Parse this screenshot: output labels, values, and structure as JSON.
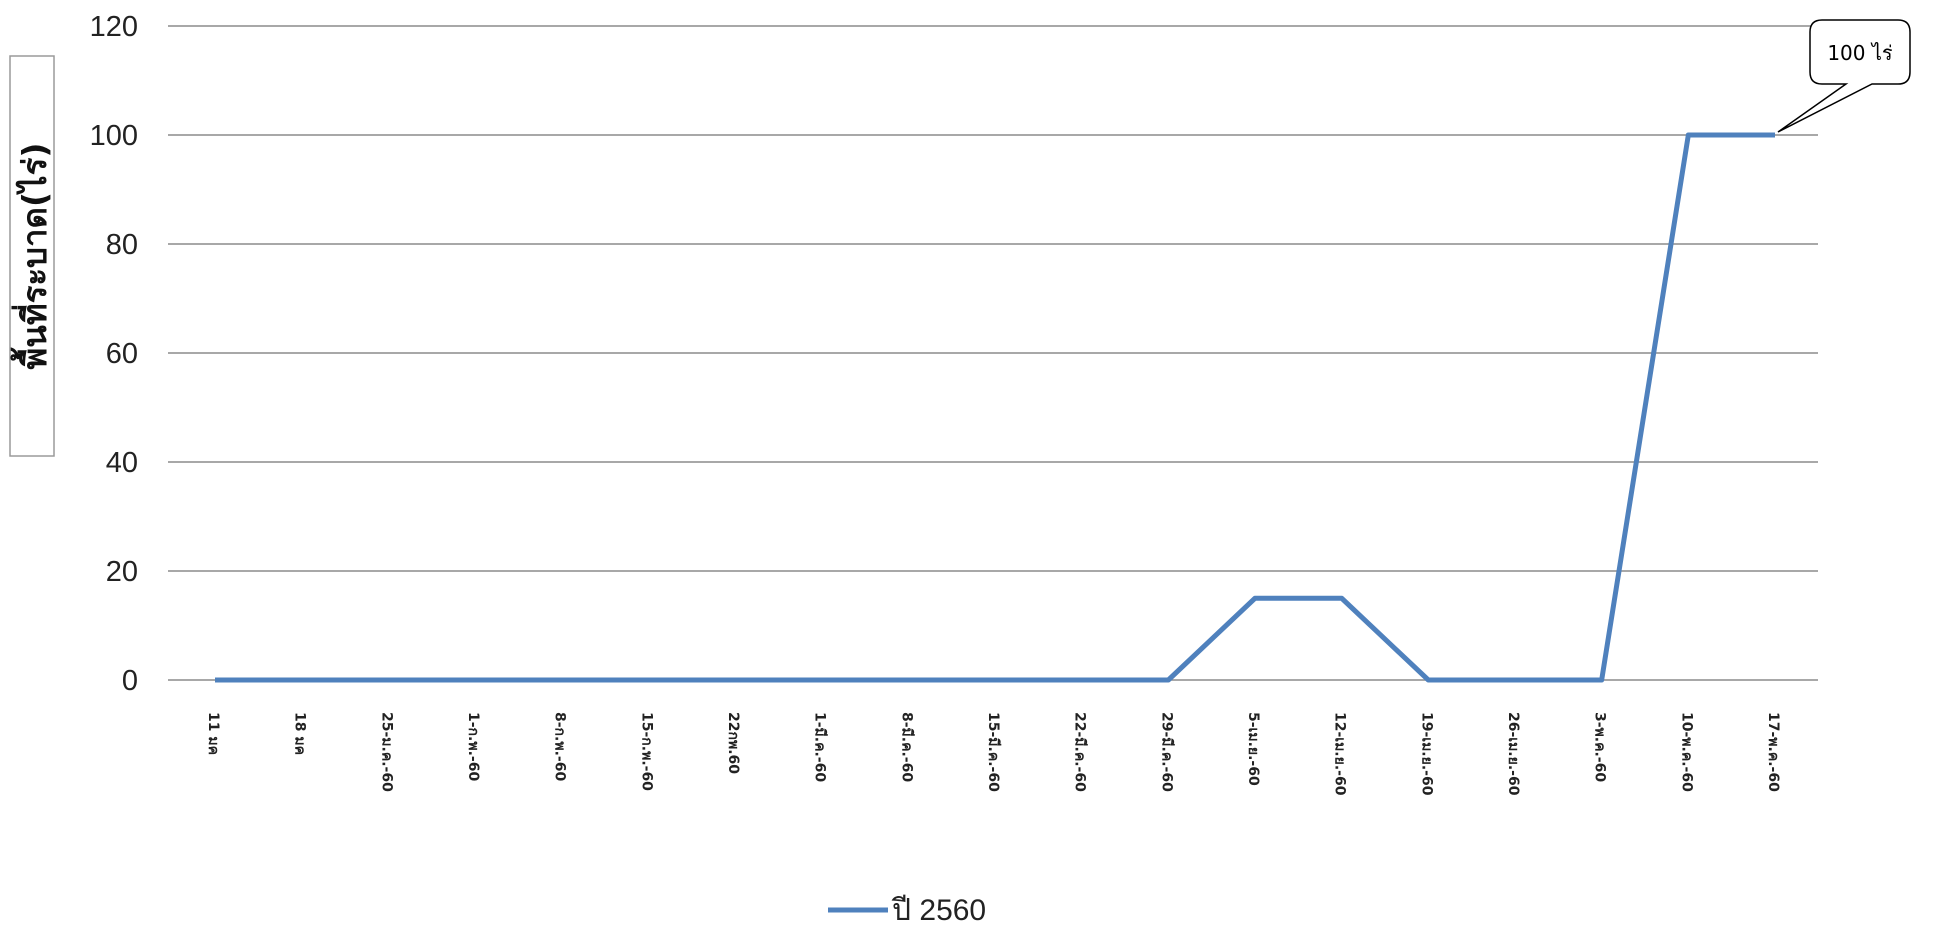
{
  "chart_data": {
    "type": "line",
    "title": "",
    "xlabel": "",
    "ylabel": "พื้นที่ระบาด(ไร่)",
    "ylim": [
      0,
      120
    ],
    "yticks": [
      "0",
      "20",
      "40",
      "60",
      "80",
      "100",
      "120"
    ],
    "grid": true,
    "legend_position": "bottom",
    "categories": [
      "11 มค",
      "18 มค",
      "25-ม.ค.-60",
      "1-ก.พ.-60",
      "8-ก.พ.-60",
      "15-ก.พ.-60",
      "22กพ.60",
      "1-มี.ค.-60",
      "8-มี.ค.-60",
      "15-มี.ค.-60",
      "22-มี.ค.-60",
      "29-มี.ค.-60",
      "5-เม.ย.-60",
      "12-เม.ย.-60",
      "19-เม.ย.-60",
      "26-เม.ย.-60",
      "3-พ.ค.-60",
      "10-พ.ค.-60",
      "17-พ.ค.-60"
    ],
    "series": [
      {
        "name": "ปี 2560",
        "color": "#4f81bd",
        "values": [
          0,
          0,
          0,
          0,
          0,
          0,
          0,
          0,
          0,
          0,
          0,
          0,
          15,
          15,
          0,
          0,
          0,
          100,
          100
        ]
      }
    ],
    "annotations": [
      {
        "text": "100 ไร่",
        "category_index": 18,
        "value": 100
      }
    ]
  }
}
